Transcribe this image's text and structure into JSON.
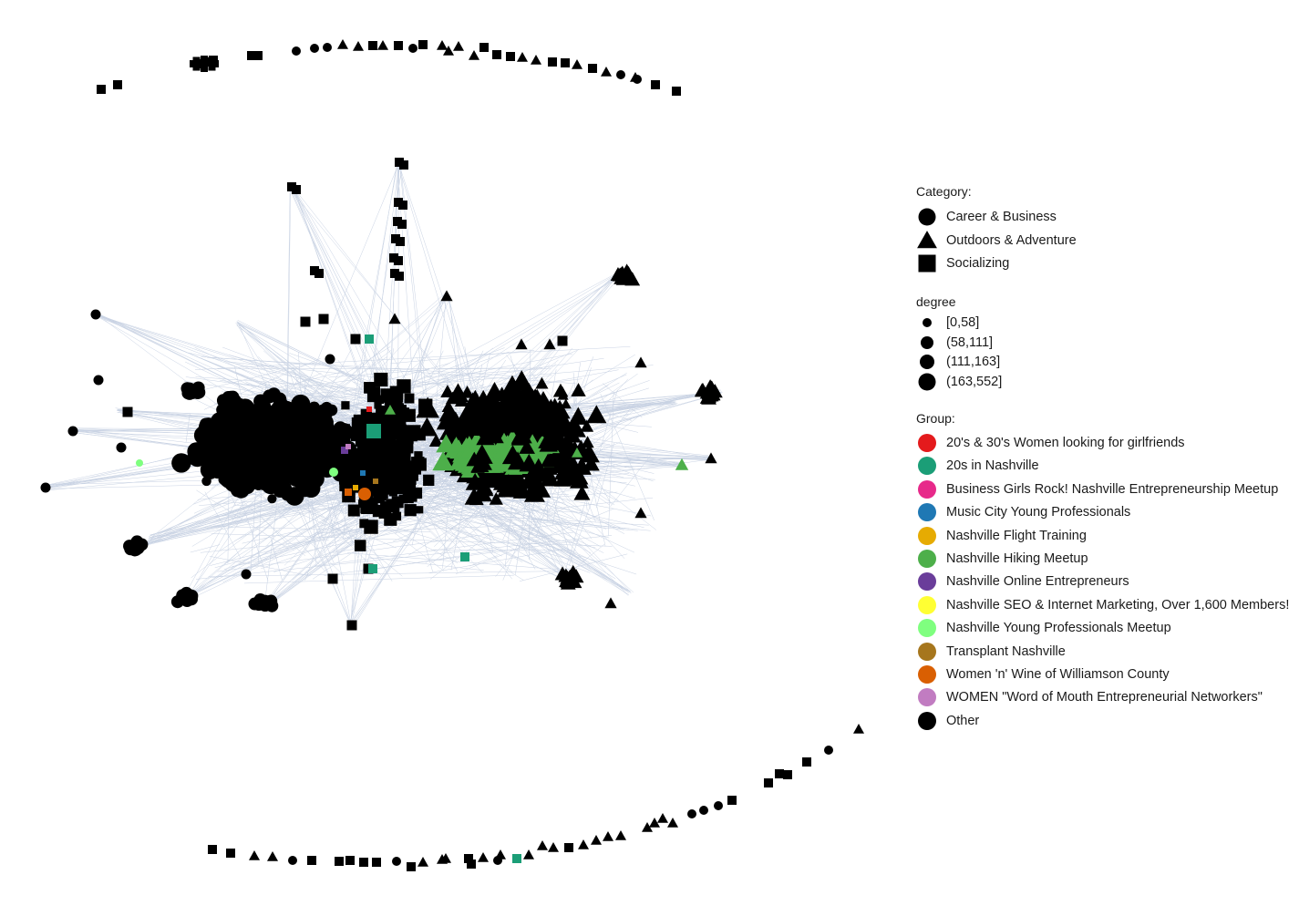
{
  "chart_data": {
    "type": "network",
    "legend": {
      "category": {
        "title": "Category:",
        "items": [
          {
            "label": "Career & Business",
            "shape": "circle"
          },
          {
            "label": "Outdoors & Adventure",
            "shape": "triangle"
          },
          {
            "label": "Socializing",
            "shape": "square"
          }
        ]
      },
      "degree": {
        "title": "degree",
        "items": [
          "[0,58]",
          "(58,111]",
          "(111,163]",
          "(163,552]"
        ]
      },
      "group": {
        "title": "Group:",
        "items": [
          {
            "label": "20's & 30's Women looking for girlfriends",
            "color": "#e41a1c"
          },
          {
            "label": "20s in Nashville",
            "color": "#1b9e77"
          },
          {
            "label": "Business Girls Rock! Nashville Entrepreneurship Meetup",
            "color": "#e7298a"
          },
          {
            "label": "Music City Young Professionals",
            "color": "#1f78b4"
          },
          {
            "label": "Nashville Flight Training",
            "color": "#e6ab02"
          },
          {
            "label": "Nashville Hiking Meetup",
            "color": "#4daf4a"
          },
          {
            "label": "Nashville Online Entrepreneurs",
            "color": "#6a3d9a"
          },
          {
            "label": "Nashville SEO & Internet Marketing, Over 1,600 Members!",
            "color": "#ffff33"
          },
          {
            "label": "Nashville Young Professionals Meetup",
            "color": "#7fff7f"
          },
          {
            "label": "Transplant Nashville",
            "color": "#a6761d"
          },
          {
            "label": "Women 'n' Wine of Williamson County",
            "color": "#d95f02"
          },
          {
            "label": "WOMEN \"Word of Mouth Entrepreneurial Networkers\"",
            "color": "#c17cc1"
          },
          {
            "label": "Other",
            "color": "#000000"
          }
        ]
      }
    },
    "edge_color": "#c8d2e3"
  }
}
